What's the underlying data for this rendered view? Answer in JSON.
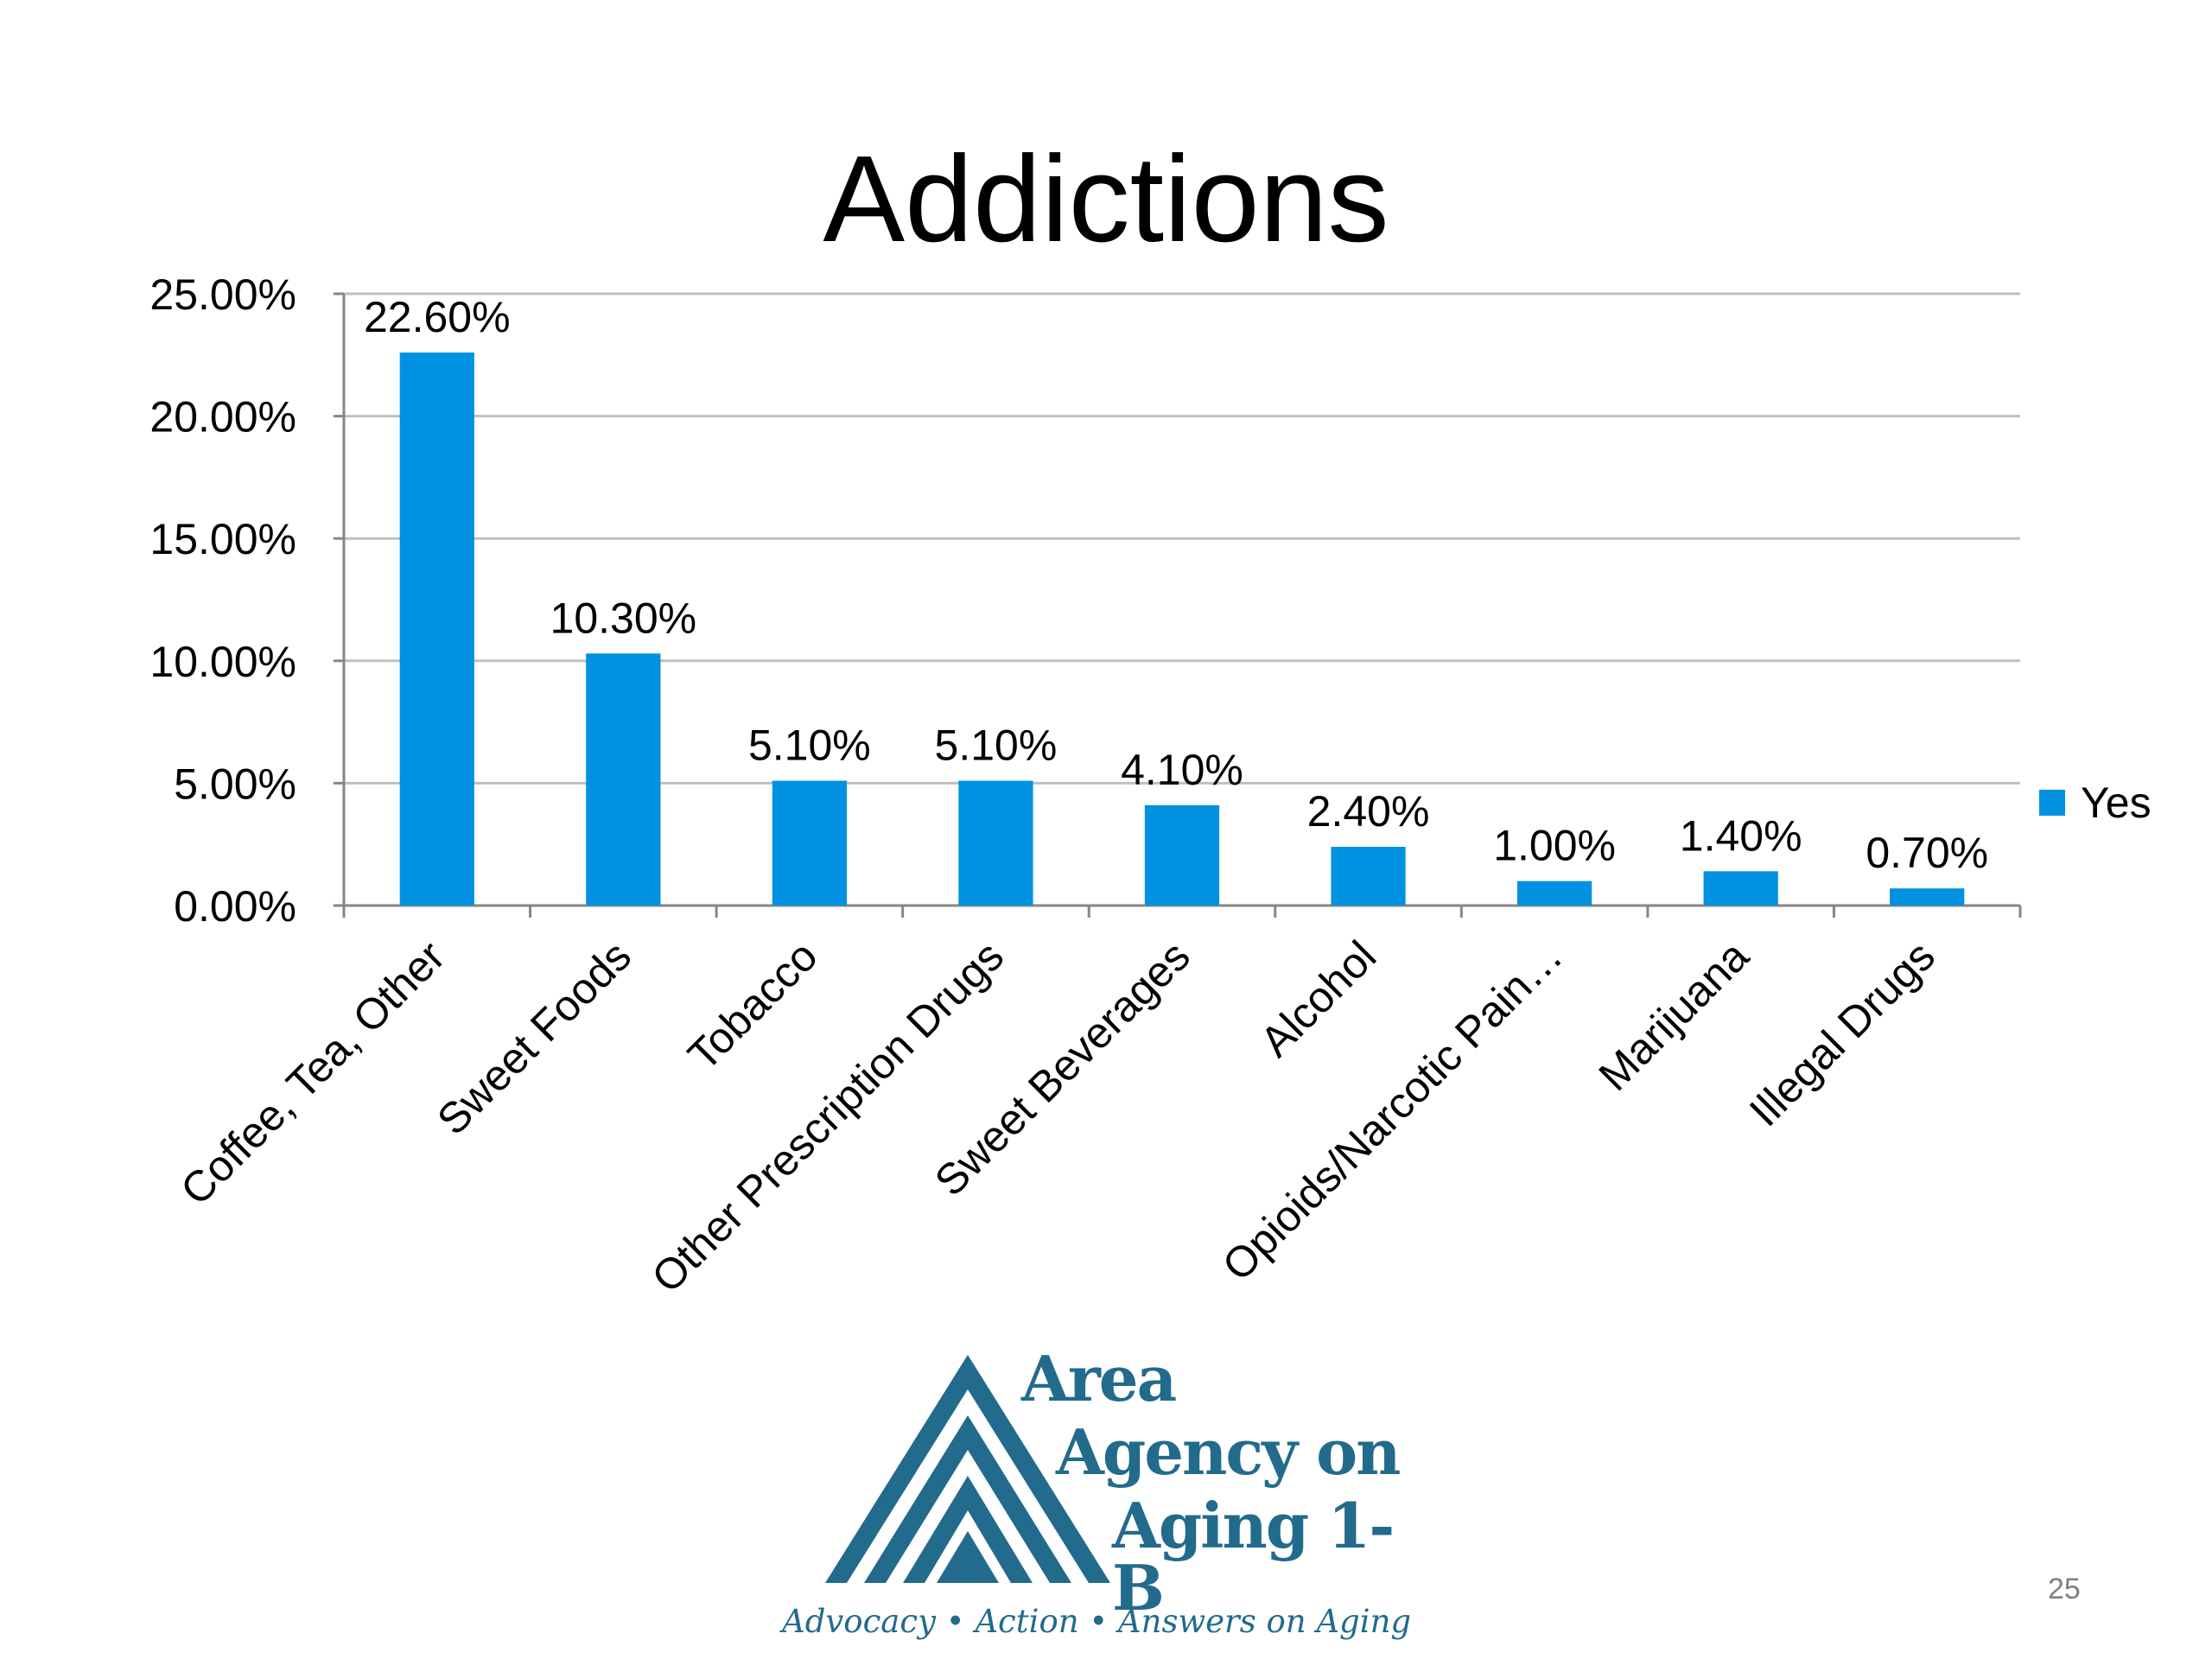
{
  "slide": {
    "title": "Addictions",
    "page_number": "25"
  },
  "chart_data": {
    "type": "bar",
    "categories": [
      "Coffee, Tea, Other",
      "Sweet Foods",
      "Tobacco",
      "Other Prescription Drugs",
      "Sweet Beverages",
      "Alcohol",
      "Opioids/Narcotic Pain…",
      "Marijuana",
      "Illegal Drugs"
    ],
    "series": [
      {
        "name": "Yes",
        "values": [
          22.6,
          10.3,
          5.1,
          5.1,
          4.1,
          2.4,
          1.0,
          1.4,
          0.7
        ],
        "color": "#0091E0"
      }
    ],
    "data_labels": [
      "22.60%",
      "10.30%",
      "5.10%",
      "5.10%",
      "4.10%",
      "2.40%",
      "1.00%",
      "1.40%",
      "0.70%"
    ],
    "y_ticks": [
      "0.00%",
      "5.00%",
      "10.00%",
      "15.00%",
      "20.00%",
      "25.00%"
    ],
    "ylim": [
      0,
      25
    ],
    "title": "Addictions",
    "xlabel": "",
    "ylabel": "",
    "grid": true,
    "legend": {
      "position": "right",
      "label": "Yes"
    }
  },
  "logo": {
    "line1": "Area",
    "line2": "Agency on",
    "line3": "Aging 1-B",
    "tagline": "Advocacy • Action • Answers on Aging",
    "color": "#226B8C"
  }
}
